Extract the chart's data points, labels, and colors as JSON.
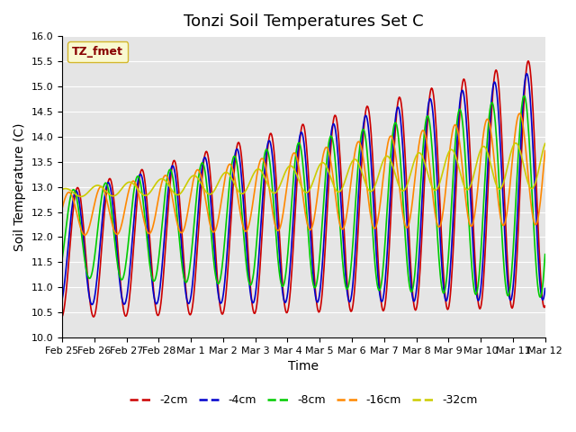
{
  "title": "Tonzi Soil Temperatures Set C",
  "xlabel": "Time",
  "ylabel": "Soil Temperature (C)",
  "ylim": [
    10.0,
    16.0
  ],
  "yticks": [
    10.0,
    10.5,
    11.0,
    11.5,
    12.0,
    12.5,
    13.0,
    13.5,
    14.0,
    14.5,
    15.0,
    15.5,
    16.0
  ],
  "xtick_labels": [
    "Feb 25",
    "Feb 26",
    "Feb 27",
    "Feb 28",
    "Mar 1",
    "Mar 2",
    "Mar 3",
    "Mar 4",
    "Mar 5",
    "Mar 6",
    "Mar 7",
    "Mar 8",
    "Mar 9",
    "Mar 10",
    "Mar 11",
    "Mar 12"
  ],
  "xtick_positions": [
    0,
    1,
    2,
    3,
    4,
    5,
    6,
    7,
    8,
    9,
    10,
    11,
    12,
    13,
    14,
    15
  ],
  "line_colors": [
    "#cc0000",
    "#0000cc",
    "#00cc00",
    "#ff8800",
    "#cccc00"
  ],
  "line_labels": [
    "-2cm",
    "-4cm",
    "-8cm",
    "-16cm",
    "-32cm"
  ],
  "legend_label": "TZ_fmet",
  "legend_fg": "#880000",
  "legend_bg": "#ffffcc",
  "legend_border": "#ccaa00",
  "bg_color": "#e5e5e5",
  "title_fontsize": 13,
  "axis_fontsize": 10,
  "tick_fontsize": 8,
  "legend_fontsize": 9,
  "n_days": 15,
  "pts_per_day": 48
}
